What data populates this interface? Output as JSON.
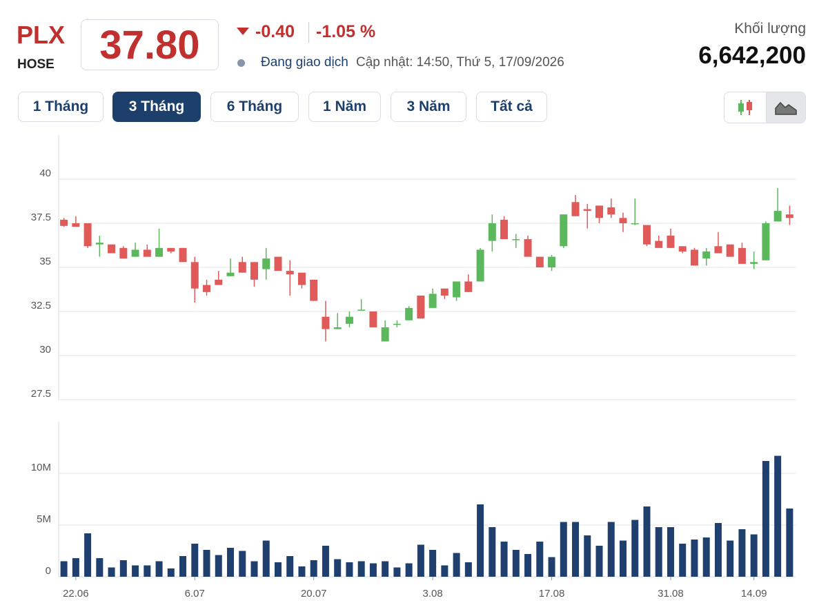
{
  "header": {
    "symbol": "PLX",
    "exchange": "HOSE",
    "price": "37.80",
    "change": "-0.40",
    "change_percent": "-1.05 %",
    "status": "Đang giao dịch",
    "updated": "Cập nhật: 14:50, Thứ 5, 17/09/2026",
    "volume_label": "Khối lượng",
    "volume": "6,642,200"
  },
  "tabs": {
    "items": [
      "1 Tháng",
      "3 Tháng",
      "6 Tháng",
      "1 Năm",
      "3 Năm",
      "Tất cả"
    ],
    "active": 1
  },
  "chart_data": [
    {
      "type": "candlestick",
      "up_color": "#5cb85c",
      "down_color": "#e05a5a",
      "grid": true,
      "ylim": [
        27.5,
        42.5
      ],
      "yticks": [
        27.5,
        30,
        32.5,
        35,
        37.5,
        40
      ],
      "open": [
        37.7,
        37.5,
        37.5,
        36.3,
        36.3,
        36.1,
        35.6,
        36.0,
        35.6,
        36.1,
        36.1,
        35.3,
        34.0,
        34.3,
        34.5,
        35.3,
        35.3,
        34.9,
        35.6,
        34.8,
        34.7,
        34.3,
        32.2,
        31.5,
        31.8,
        32.6,
        32.5,
        30.8,
        31.8,
        32.0,
        33.4,
        32.7,
        33.8,
        33.3,
        34.2,
        34.2,
        36.5,
        37.7,
        36.6,
        36.6,
        35.6,
        35.0,
        36.2,
        38.7,
        38.3,
        38.5,
        38.4,
        37.8,
        37.5,
        37.4,
        36.5,
        36.8,
        36.2,
        36.0,
        35.5,
        36.2,
        36.3,
        36.1,
        35.2,
        35.4,
        37.6,
        38.0
      ],
      "high": [
        37.8,
        37.9,
        37.5,
        36.8,
        36.3,
        36.2,
        36.4,
        36.3,
        37.2,
        36.1,
        36.1,
        35.6,
        34.3,
        34.8,
        35.5,
        35.6,
        35.3,
        36.1,
        35.6,
        35.4,
        34.7,
        34.3,
        33.1,
        32.4,
        32.5,
        33.2,
        32.5,
        32.0,
        32.0,
        32.8,
        33.4,
        33.8,
        33.8,
        34.2,
        34.6,
        36.1,
        38.0,
        37.9,
        36.9,
        36.8,
        35.6,
        35.7,
        38.0,
        39.1,
        38.6,
        38.5,
        38.9,
        38.1,
        38.9,
        37.4,
        36.8,
        37.2,
        36.2,
        36.1,
        36.1,
        37.0,
        36.3,
        36.4,
        35.9,
        37.6,
        39.5,
        38.5
      ],
      "low": [
        37.3,
        37.3,
        36.1,
        35.6,
        35.8,
        35.5,
        35.6,
        35.6,
        35.6,
        35.8,
        35.3,
        33.0,
        33.4,
        34.0,
        34.5,
        34.7,
        33.9,
        34.3,
        34.8,
        33.4,
        33.8,
        33.1,
        30.8,
        31.5,
        31.6,
        32.6,
        31.6,
        30.8,
        31.6,
        32.0,
        32.1,
        32.7,
        33.2,
        33.1,
        33.6,
        34.2,
        35.9,
        36.6,
        36.1,
        35.6,
        35.0,
        34.8,
        36.1,
        37.9,
        37.2,
        37.5,
        37.8,
        37.0,
        37.4,
        36.2,
        36.1,
        36.1,
        35.8,
        35.1,
        35.1,
        35.8,
        35.6,
        35.2,
        34.9,
        35.4,
        37.6,
        37.4
      ],
      "close": [
        37.35,
        37.3,
        36.2,
        36.4,
        35.8,
        35.5,
        36.0,
        35.6,
        36.1,
        35.9,
        35.3,
        33.8,
        33.6,
        34.0,
        34.7,
        34.7,
        34.3,
        35.5,
        34.8,
        34.6,
        34.0,
        33.1,
        31.5,
        31.6,
        32.2,
        32.6,
        31.6,
        31.6,
        31.8,
        32.7,
        32.1,
        33.5,
        33.4,
        34.2,
        33.6,
        36.0,
        37.5,
        36.6,
        36.6,
        35.6,
        35.0,
        35.6,
        38.0,
        37.9,
        38.2,
        37.8,
        38.0,
        37.5,
        37.5,
        36.3,
        36.1,
        36.1,
        35.9,
        35.1,
        35.9,
        35.8,
        35.6,
        35.2,
        35.3,
        37.5,
        38.2,
        37.8
      ]
    },
    {
      "type": "bar",
      "color": "#1f3f6e",
      "grid": true,
      "categories": [
        null,
        "22.06",
        null,
        null,
        null,
        null,
        null,
        null,
        null,
        null,
        null,
        "6.07",
        null,
        null,
        null,
        null,
        null,
        null,
        null,
        null,
        null,
        "20.07",
        null,
        null,
        null,
        null,
        null,
        null,
        null,
        null,
        null,
        "3.08",
        null,
        null,
        null,
        null,
        null,
        null,
        null,
        null,
        null,
        "17.08",
        null,
        null,
        null,
        null,
        null,
        null,
        null,
        null,
        null,
        "31.08",
        null,
        null,
        null,
        null,
        null,
        null,
        "14.09",
        null,
        null,
        null
      ],
      "values": [
        1500000,
        1800000,
        4200000,
        1800000,
        900000,
        1600000,
        1100000,
        1100000,
        1500000,
        800000,
        2000000,
        3200000,
        2600000,
        2100000,
        2800000,
        2500000,
        1500000,
        3500000,
        1400000,
        2000000,
        1000000,
        1600000,
        3000000,
        1700000,
        1400000,
        1500000,
        1300000,
        1500000,
        900000,
        1300000,
        3100000,
        2600000,
        1100000,
        2300000,
        1400000,
        7000000,
        4800000,
        3400000,
        2600000,
        2200000,
        3400000,
        1900000,
        5300000,
        5300000,
        4000000,
        3000000,
        5300000,
        3500000,
        5500000,
        6800000,
        4800000,
        4800000,
        3200000,
        3600000,
        3800000,
        5200000,
        3500000,
        4600000,
        4100000,
        11200000,
        11700000,
        6600000
      ],
      "ylim": [
        0,
        15000000
      ],
      "yticks": [
        0,
        {
          "value": 5000000,
          "label": "5M"
        },
        {
          "value": 10000000,
          "label": "10M"
        }
      ]
    }
  ]
}
